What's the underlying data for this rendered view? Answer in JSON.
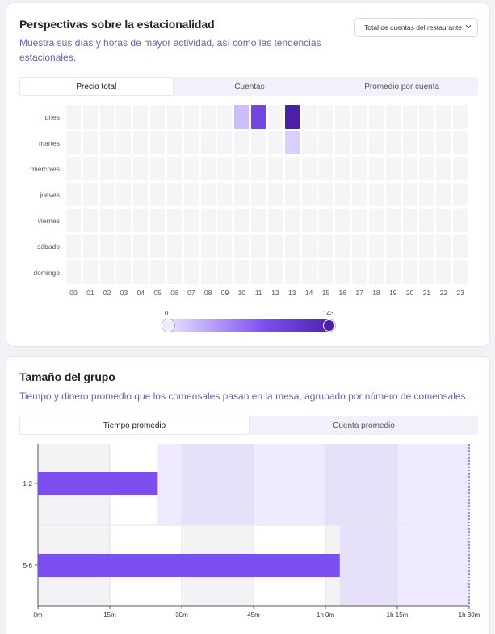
{
  "seasonality": {
    "title": "Perspectivas sobre la estacionalidad",
    "subtitle": "Muestra sus días y horas de mayor actividad, así como las tendencias estacionales.",
    "dropdown": {
      "selected": "Total de cuentas del restaurante",
      "icon": "chevron-down-icon"
    },
    "tabs": [
      "Precio total",
      "Cuentas",
      "Promedio por cuenta"
    ],
    "active_tab": 0,
    "days": [
      "lunes",
      "martes",
      "miércoles",
      "jueves",
      "viernes",
      "sábado",
      "domingo"
    ],
    "hours": [
      "00",
      "01",
      "02",
      "03",
      "04",
      "05",
      "06",
      "07",
      "08",
      "09",
      "10",
      "11",
      "12",
      "13",
      "14",
      "15",
      "16",
      "17",
      "18",
      "19",
      "20",
      "21",
      "22",
      "23"
    ],
    "legend": {
      "min": "0",
      "max": "143"
    },
    "colors": {
      "low": "#efeaff",
      "mid": "#7b4ef0",
      "high": "#4b1fa8"
    }
  },
  "group_size": {
    "title": "Tamaño del grupo",
    "subtitle": "Tiempo y dinero promedio que los comensales pasan en la mesa, agrupado por número de comensales.",
    "tabs": [
      "Tiempo promedio",
      "Cuenta promedio"
    ],
    "active_tab": 0
  },
  "chart_data": [
    {
      "type": "heatmap",
      "x": [
        "00",
        "01",
        "02",
        "03",
        "04",
        "05",
        "06",
        "07",
        "08",
        "09",
        "10",
        "11",
        "12",
        "13",
        "14",
        "15",
        "16",
        "17",
        "18",
        "19",
        "20",
        "21",
        "22",
        "23"
      ],
      "y": [
        "lunes",
        "martes",
        "miércoles",
        "jueves",
        "viernes",
        "sábado",
        "domingo"
      ],
      "values": [
        {
          "day": "lunes",
          "hour": "10",
          "value": 25
        },
        {
          "day": "lunes",
          "hour": "11",
          "value": 95
        },
        {
          "day": "lunes",
          "hour": "13",
          "value": 143
        },
        {
          "day": "martes",
          "hour": "13",
          "value": 15
        }
      ],
      "range": [
        0,
        143
      ]
    },
    {
      "type": "bar",
      "orientation": "horizontal",
      "categories": [
        "1-2",
        "5-6"
      ],
      "values": [
        25,
        63
      ],
      "x_unit": "minutes",
      "x_ticks": [
        "0m",
        "15m",
        "30m",
        "45m",
        "1h 0m",
        "1h 15m",
        "1h 30m"
      ],
      "xlim": [
        0,
        90
      ],
      "color": "#7b4ef0"
    }
  ]
}
